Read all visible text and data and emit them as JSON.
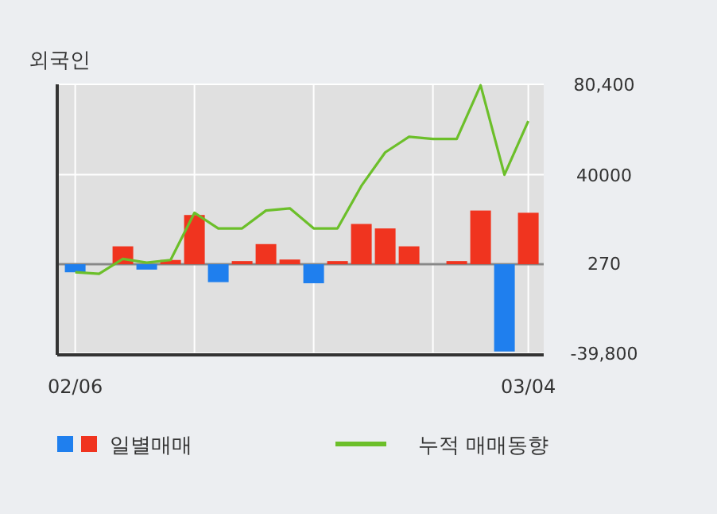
{
  "chart_data": {
    "type": "bar",
    "title": "외국인",
    "categories": [
      "02/06",
      null,
      null,
      null,
      null,
      null,
      null,
      null,
      null,
      null,
      null,
      null,
      null,
      null,
      null,
      null,
      null,
      null,
      null,
      "03/04"
    ],
    "series": [
      {
        "name": "일별매매",
        "colors": [
          "#1f7fee",
          "#f0341f",
          "#f0341f",
          "#1f7fee",
          "#f0341f",
          "#f0341f",
          "#1f7fee",
          "#f0341f",
          "#f0341f",
          "#f0341f",
          "#1f7fee",
          "#f0341f",
          "#f0341f",
          "#f0341f",
          "#f0341f",
          "#f0341f",
          "#f0341f",
          "#f0341f",
          "#1f7fee",
          "#f0341f"
        ],
        "values": [
          -3600,
          0,
          8000,
          -2400,
          1900,
          22000,
          -8000,
          1400,
          9000,
          2100,
          -8500,
          1400,
          18000,
          16000,
          8000,
          0,
          1400,
          24000,
          -39000,
          23000
        ]
      },
      {
        "name": "누적 매매동향",
        "type": "line",
        "color": "#6cbf2a",
        "values": [
          -3600,
          -4300,
          2400,
          700,
          1900,
          23000,
          16000,
          16000,
          24000,
          25000,
          16000,
          16000,
          35000,
          50000,
          57000,
          56000,
          56000,
          80000,
          40000,
          64000
        ]
      }
    ],
    "ylim": [
      -39800,
      80400
    ],
    "yticks": [
      {
        "value": 80400,
        "label": "80,400"
      },
      40000,
      270,
      {
        "value": -39800,
        "label": "-39,800"
      }
    ],
    "grid": true,
    "legend": "bottom"
  }
}
